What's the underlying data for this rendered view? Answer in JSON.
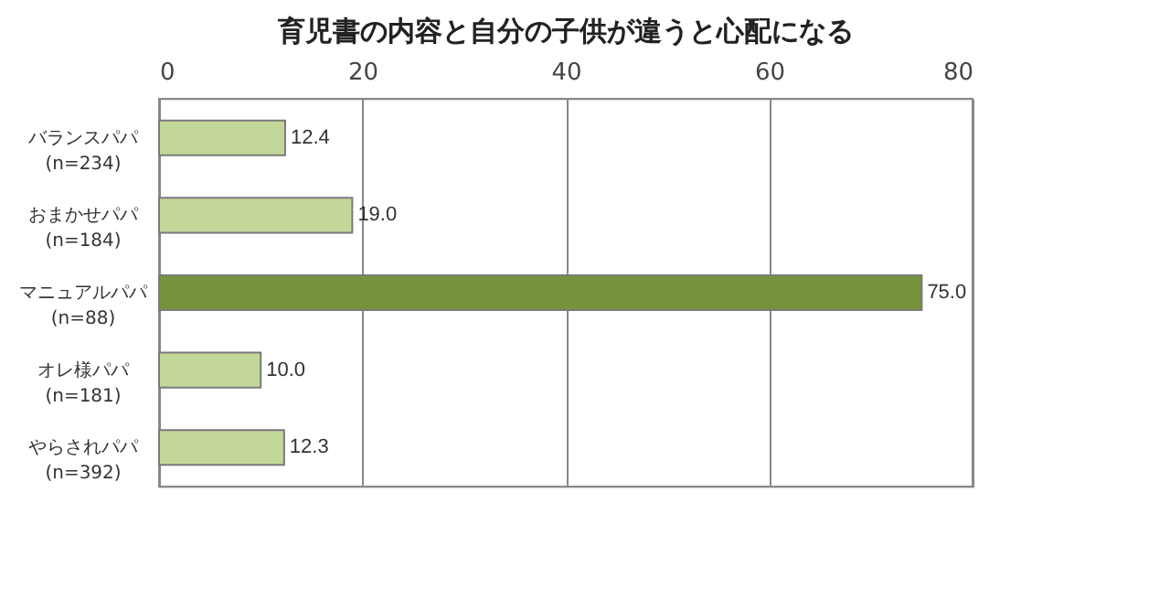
{
  "chart_data": {
    "type": "bar",
    "orientation": "horizontal",
    "title": "育児書の内容と自分の子供が違うと心配になる",
    "categories": [
      "バランスパパ\n(n=234)",
      "おまかせパパ\n(n=184)",
      "マニュアルパパ\n(n=88)",
      "オレ様パパ\n(n=181)",
      "やらされパパ\n(n=392)"
    ],
    "values": [
      12.4,
      19.0,
      75.0,
      10.0,
      12.3
    ],
    "value_labels": [
      "12.4",
      "19.0",
      "75.0",
      "10.0",
      "12.3"
    ],
    "colors": [
      "#c4d79b",
      "#c4d79b",
      "#76933c",
      "#c4d79b",
      "#c4d79b"
    ],
    "xlim": [
      0,
      80
    ],
    "xticks": [
      0,
      20,
      40,
      60,
      80
    ],
    "grid": "x"
  }
}
